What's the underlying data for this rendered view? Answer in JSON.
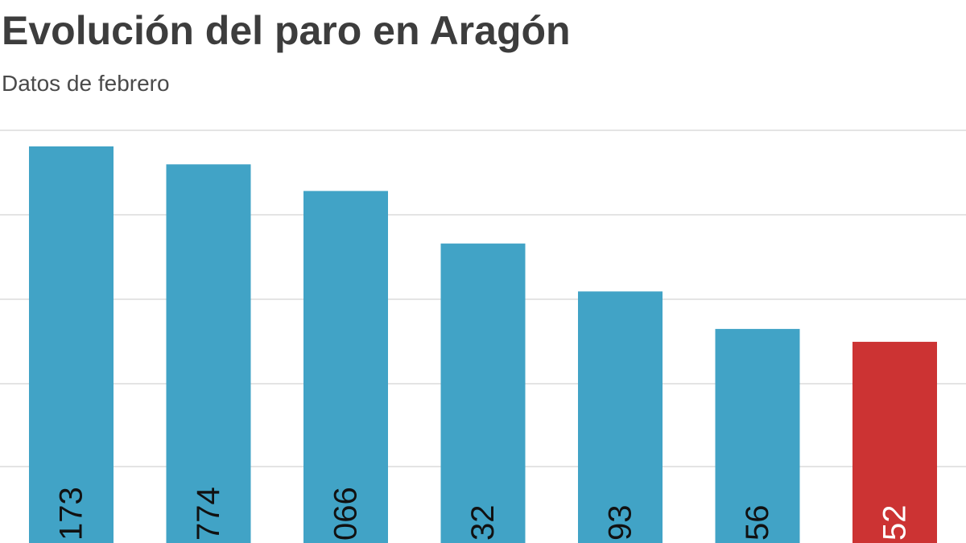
{
  "colors": {
    "title": "#3d3d3d",
    "subtitle": "#4a4a4a",
    "bar": "#41a3c6",
    "highlight": "#cc3333",
    "label_dark": "#111111",
    "label_light": "#ffffff"
  },
  "chart_data": {
    "type": "bar",
    "title": "Evolución del paro en Aragón",
    "subtitle": "Datos de febrero",
    "xlabel": "",
    "ylabel": "",
    "grid": true,
    "orientation": "vertical",
    "label_rotation": "vertical",
    "visible_labels": [
      "173",
      "774",
      "066",
      "32",
      "93",
      "56",
      "52"
    ],
    "values": [
      1.0,
      0.957,
      0.893,
      0.767,
      0.652,
      0.562,
      0.531
    ],
    "highlight_index": 6
  }
}
